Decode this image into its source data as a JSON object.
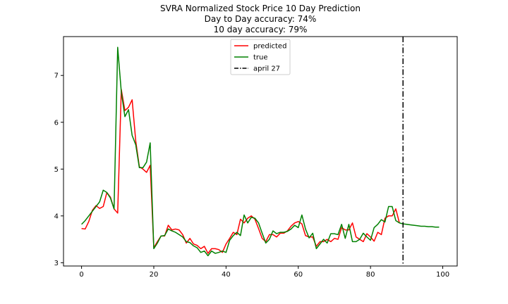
{
  "chart_data": {
    "type": "line",
    "title": "SVRA Normalized Stock Price 10 Day Prediction",
    "subtitle_lines": [
      "Day to Day accuracy: 74%",
      "10 day accuracy: 79%"
    ],
    "xlabel": "",
    "ylabel": "",
    "xlim": [
      -5,
      104
    ],
    "ylim": [
      2.93,
      7.83
    ],
    "x_ticks": [
      0,
      20,
      40,
      60,
      80,
      100
    ],
    "y_ticks": [
      3,
      4,
      5,
      6,
      7
    ],
    "grid": false,
    "legend_position": "top-center",
    "series": [
      {
        "name": "predicted",
        "color": "#ff0000",
        "x": [
          0,
          1,
          2,
          3,
          4,
          5,
          6,
          7,
          8,
          9,
          10,
          11,
          12,
          13,
          14,
          15,
          16,
          17,
          18,
          19,
          20,
          21,
          22,
          23,
          24,
          25,
          26,
          27,
          28,
          29,
          30,
          31,
          32,
          33,
          34,
          35,
          36,
          37,
          38,
          39,
          40,
          41,
          42,
          43,
          44,
          45,
          46,
          47,
          48,
          49,
          50,
          51,
          52,
          53,
          54,
          55,
          56,
          57,
          58,
          59,
          60,
          61,
          62,
          63,
          64,
          65,
          66,
          67,
          68,
          69,
          70,
          71,
          72,
          73,
          74,
          75,
          76,
          77,
          78,
          79,
          80,
          81,
          82,
          83,
          84,
          85,
          86,
          87,
          88
        ],
        "y": [
          3.73,
          3.72,
          3.88,
          4.12,
          4.22,
          4.16,
          4.2,
          4.5,
          4.4,
          4.15,
          4.06,
          6.7,
          6.25,
          6.32,
          6.48,
          5.6,
          5.05,
          5.0,
          4.93,
          5.08,
          3.32,
          3.45,
          3.57,
          3.57,
          3.8,
          3.7,
          3.72,
          3.7,
          3.6,
          3.42,
          3.52,
          3.4,
          3.37,
          3.3,
          3.35,
          3.2,
          3.3,
          3.3,
          3.28,
          3.22,
          3.4,
          3.52,
          3.65,
          3.6,
          3.93,
          3.85,
          3.95,
          4.0,
          3.93,
          3.73,
          3.52,
          3.45,
          3.6,
          3.6,
          3.55,
          3.63,
          3.63,
          3.68,
          3.78,
          3.85,
          3.88,
          3.83,
          3.58,
          3.55,
          3.55,
          3.35,
          3.45,
          3.45,
          3.5,
          3.45,
          3.52,
          3.5,
          3.75,
          3.7,
          3.7,
          3.85,
          3.55,
          3.5,
          3.45,
          3.62,
          3.55,
          3.46,
          3.65,
          3.6,
          3.95,
          4.0,
          4.0,
          4.15,
          3.85
        ]
      },
      {
        "name": "true",
        "color": "#008000",
        "x": [
          0,
          1,
          2,
          3,
          4,
          5,
          6,
          7,
          8,
          9,
          10,
          11,
          12,
          13,
          14,
          15,
          16,
          17,
          18,
          19,
          20,
          21,
          22,
          23,
          24,
          25,
          26,
          27,
          28,
          29,
          30,
          31,
          32,
          33,
          34,
          35,
          36,
          37,
          38,
          39,
          40,
          41,
          42,
          43,
          44,
          45,
          46,
          47,
          48,
          49,
          50,
          51,
          52,
          53,
          54,
          55,
          56,
          57,
          58,
          59,
          60,
          61,
          62,
          63,
          64,
          65,
          66,
          67,
          68,
          69,
          70,
          71,
          72,
          73,
          74,
          75,
          76,
          77,
          78,
          79,
          80,
          81,
          82,
          83,
          84,
          85,
          86,
          87,
          88,
          89,
          90,
          91,
          92,
          93,
          94,
          95,
          96,
          97,
          98,
          99
        ],
        "y": [
          3.82,
          3.9,
          4.0,
          4.1,
          4.2,
          4.3,
          4.55,
          4.5,
          4.38,
          4.15,
          7.6,
          6.65,
          6.12,
          6.27,
          5.72,
          5.52,
          5.03,
          5.03,
          5.15,
          5.56,
          3.3,
          3.42,
          3.57,
          3.58,
          3.72,
          3.68,
          3.65,
          3.6,
          3.55,
          3.45,
          3.43,
          3.36,
          3.32,
          3.22,
          3.25,
          3.15,
          3.25,
          3.2,
          3.22,
          3.25,
          3.22,
          3.48,
          3.58,
          3.65,
          3.58,
          4.02,
          3.85,
          3.97,
          3.95,
          3.85,
          3.63,
          3.42,
          3.5,
          3.68,
          3.62,
          3.65,
          3.65,
          3.67,
          3.72,
          3.8,
          3.75,
          4.02,
          3.72,
          3.53,
          3.63,
          3.3,
          3.4,
          3.5,
          3.42,
          3.62,
          3.62,
          3.6,
          3.82,
          3.52,
          3.82,
          3.45,
          3.45,
          3.5,
          3.63,
          3.55,
          3.48,
          3.75,
          3.82,
          3.92,
          3.87,
          4.2,
          4.2,
          3.9,
          3.85,
          3.83,
          3.82,
          3.81,
          3.8,
          3.79,
          3.78,
          3.78,
          3.77,
          3.77,
          3.76,
          3.76
        ]
      }
    ],
    "vertical_line": {
      "name": "april 27",
      "x": 89,
      "color": "#000000",
      "style": "dashdot"
    }
  }
}
